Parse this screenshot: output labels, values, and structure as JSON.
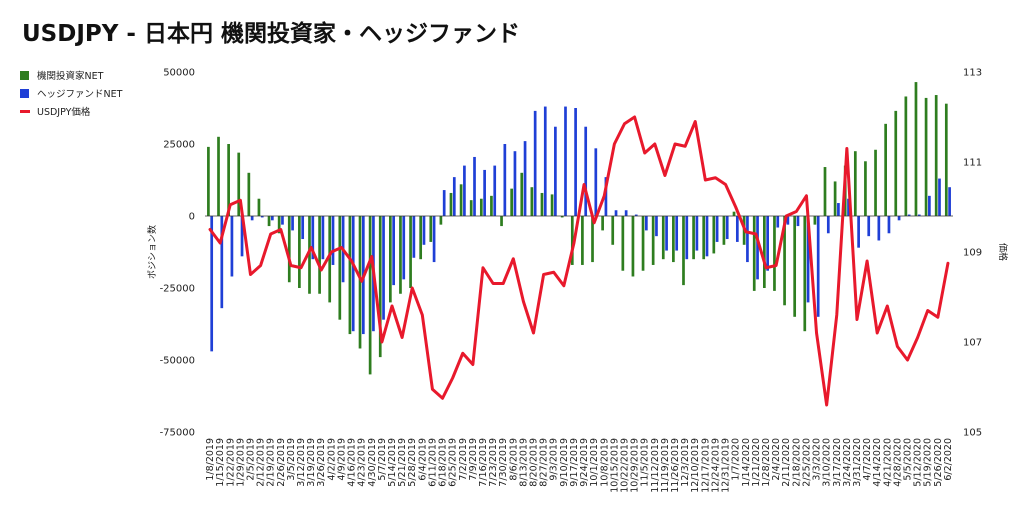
{
  "chart_data": {
    "type": "bar+line",
    "title": "USDJPY - 日本円 機関投資家・ヘッジファンド",
    "ylabel": "ポジション数",
    "y2label": "価格",
    "ylim": [
      -75000,
      50000
    ],
    "yticks": [
      50000,
      25000,
      0,
      -25000,
      -50000,
      -75000
    ],
    "y2lim": [
      105,
      113
    ],
    "y2ticks": [
      113,
      111,
      109,
      107,
      105
    ],
    "x": [
      "1/8/2019",
      "1/15/2019",
      "1/22/2019",
      "1/29/2019",
      "2/5/2019",
      "2/12/2019",
      "2/19/2019",
      "2/26/2019",
      "3/5/2019",
      "3/12/2019",
      "3/19/2019",
      "3/26/2019",
      "4/2/2019",
      "4/9/2019",
      "4/16/2019",
      "4/23/2019",
      "4/30/2019",
      "5/7/2019",
      "5/14/2019",
      "5/21/2019",
      "5/28/2019",
      "6/4/2019",
      "6/11/2019",
      "6/18/2019",
      "6/25/2019",
      "7/2/2019",
      "7/9/2019",
      "7/16/2019",
      "7/23/2019",
      "7/30/2019",
      "8/6/2019",
      "8/13/2019",
      "8/20/2019",
      "8/27/2019",
      "9/3/2019",
      "9/10/2019",
      "9/17/2019",
      "9/24/2019",
      "10/1/2019",
      "10/8/2019",
      "10/15/2019",
      "10/22/2019",
      "10/29/2019",
      "11/5/2019",
      "11/12/2019",
      "11/19/2019",
      "11/26/2019",
      "12/3/2019",
      "12/10/2019",
      "12/17/2019",
      "12/24/2019",
      "12/31/2019",
      "1/7/2020",
      "1/14/2020",
      "1/21/2020",
      "1/28/2020",
      "2/4/2020",
      "2/11/2020",
      "2/18/2020",
      "2/25/2020",
      "3/3/2020",
      "3/10/2020",
      "3/17/2020",
      "3/24/2020",
      "3/31/2020",
      "4/7/2020",
      "4/14/2020",
      "4/21/2020",
      "4/28/2020",
      "5/5/2020",
      "5/12/2020",
      "5/19/2020",
      "5/26/2020",
      "6/2/2020"
    ],
    "series": [
      {
        "name": "機関投資家NET",
        "type": "bar",
        "color": "#2e7d1f",
        "values": [
          24000,
          27500,
          25000,
          22000,
          15000,
          6000,
          -3500,
          -6000,
          -23000,
          -25000,
          -27000,
          -27000,
          -30000,
          -36000,
          -41000,
          -46000,
          -55000,
          -49000,
          -30000,
          -27000,
          -25000,
          -15000,
          -9000,
          -3000,
          8000,
          11000,
          5500,
          6000,
          7000,
          -3500,
          9500,
          15000,
          10000,
          8000,
          7500,
          -500,
          -17000,
          -17000,
          -16000,
          -5000,
          -10000,
          -19000,
          -21000,
          -19000,
          -17000,
          -15000,
          -16000,
          -24000,
          -15000,
          -15000,
          -13000,
          -10000,
          1500,
          -10000,
          -26000,
          -25000,
          -26000,
          -31000,
          -35000,
          -40000,
          -3000,
          17000,
          12000,
          17500,
          22500,
          19000,
          23000,
          32000,
          36500,
          41500,
          46500,
          41000,
          42000,
          39000
        ]
      },
      {
        "name": "ヘッジファンドNET",
        "type": "bar",
        "color": "#1f3fd6",
        "values": [
          -47000,
          -32000,
          -21000,
          -14000,
          -1500,
          -500,
          -1500,
          -3000,
          -5000,
          -8000,
          -15000,
          -15000,
          -17000,
          -23000,
          -40000,
          -41000,
          -40000,
          -36000,
          -24000,
          -22000,
          -14500,
          -10000,
          -16000,
          9000,
          13500,
          17500,
          20500,
          16000,
          17500,
          25000,
          22500,
          26000,
          36500,
          38000,
          31000,
          38000,
          37500,
          31000,
          23500,
          13500,
          2000,
          2000,
          500,
          -5000,
          -7000,
          -12000,
          -12000,
          -15000,
          -12000,
          -14000,
          -9000,
          -8000,
          -9000,
          -16000,
          -22000,
          -19000,
          -4000,
          -3000,
          -3500,
          -30000,
          -35000,
          -6000,
          4500,
          6000,
          -11000,
          -7000,
          -8500,
          -6000,
          -1500,
          500,
          500,
          7000,
          13000,
          10000
        ]
      },
      {
        "name": "USDJPY価格",
        "type": "line",
        "color": "#e8192c",
        "values": [
          109.5,
          109.2,
          110.05,
          110.15,
          108.5,
          108.7,
          109.4,
          109.5,
          108.7,
          108.65,
          109.1,
          108.6,
          109.0,
          109.1,
          108.8,
          108.35,
          108.9,
          107.0,
          107.8,
          107.1,
          108.2,
          107.6,
          105.95,
          105.75,
          106.2,
          106.75,
          106.5,
          108.65,
          108.3,
          108.3,
          108.85,
          107.9,
          107.2,
          108.5,
          108.55,
          108.25,
          109.2,
          110.5,
          109.65,
          110.25,
          111.4,
          111.85,
          112.0,
          111.2,
          111.4,
          110.7,
          111.4,
          111.35,
          111.9,
          110.6,
          110.65,
          110.5,
          110.0,
          109.45,
          109.4,
          108.65,
          108.7,
          109.8,
          109.9,
          110.25,
          107.2,
          105.6,
          107.6,
          111.3,
          107.5,
          108.8,
          107.2,
          107.8,
          106.9,
          106.6,
          107.1,
          107.7,
          107.55,
          108.75
        ]
      }
    ],
    "legend_position": "top-left",
    "grid": false
  }
}
